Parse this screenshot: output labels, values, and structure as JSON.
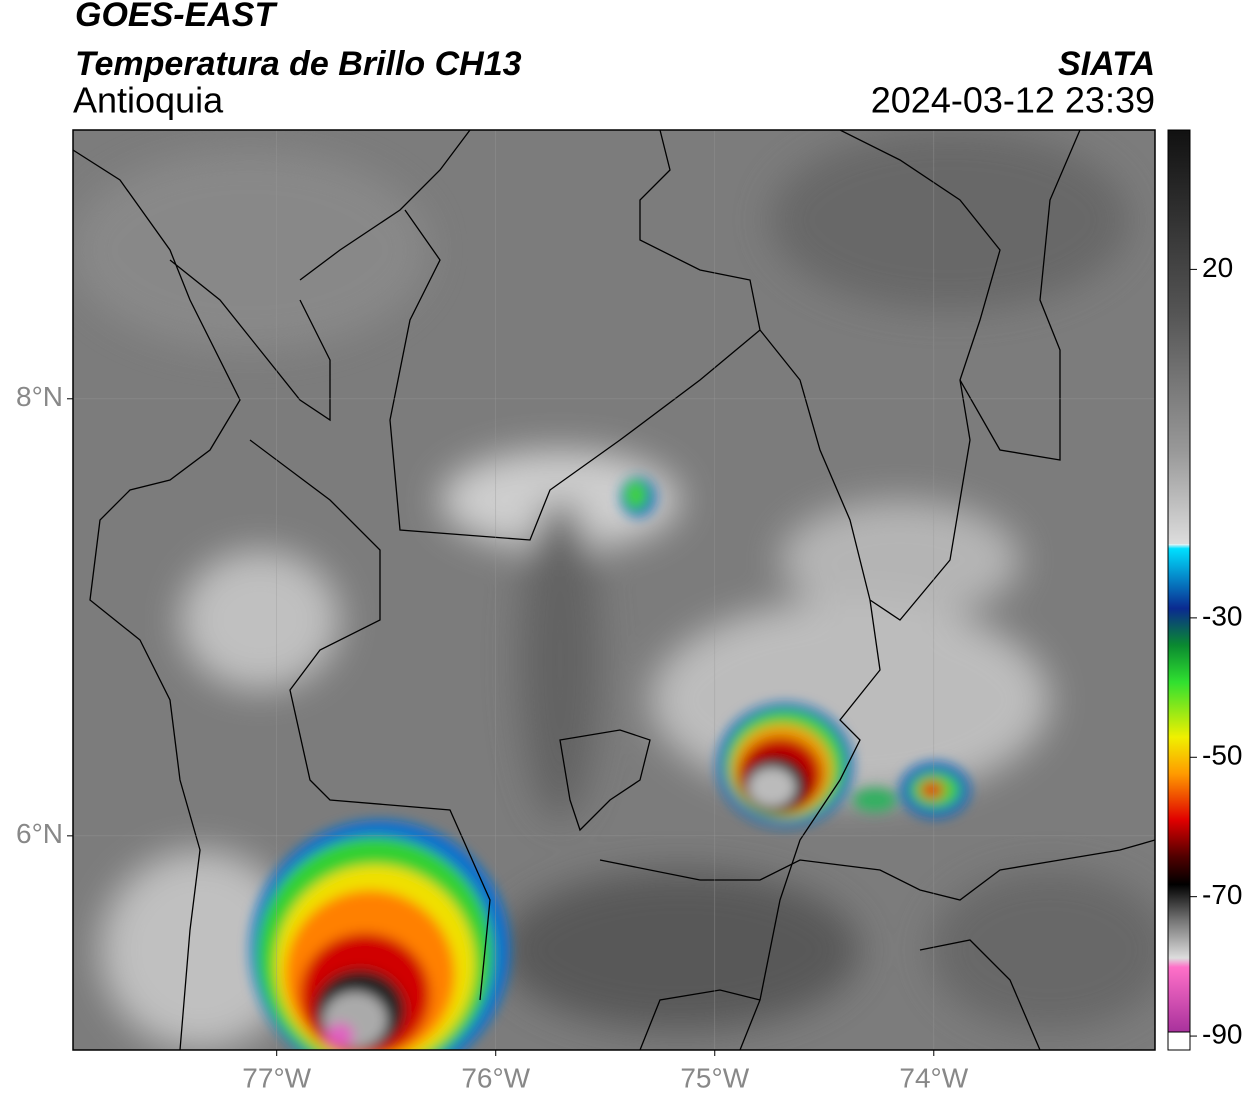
{
  "chart_data": {
    "type": "map",
    "title": "GOES-EAST",
    "subtitle": "Temperatura de Brillo CH13",
    "region": "Antioquia",
    "source": "SIATA",
    "datetime": "2024-03-12 23:39",
    "xlim": [
      -77.93,
      -72.99
    ],
    "ylim": [
      5.02,
      9.23
    ],
    "xticks": [
      {
        "value": -77,
        "label": "77°W"
      },
      {
        "value": -76,
        "label": "76°W"
      },
      {
        "value": -75,
        "label": "75°W"
      },
      {
        "value": -74,
        "label": "74°W"
      }
    ],
    "yticks": [
      {
        "value": 6,
        "label": "6°N"
      },
      {
        "value": 8,
        "label": "8°N"
      }
    ],
    "colorbar_lim": [
      -92,
      40
    ],
    "colorbar_ticks": [
      20,
      -30,
      -50,
      -70,
      -90
    ],
    "grid": true
  }
}
